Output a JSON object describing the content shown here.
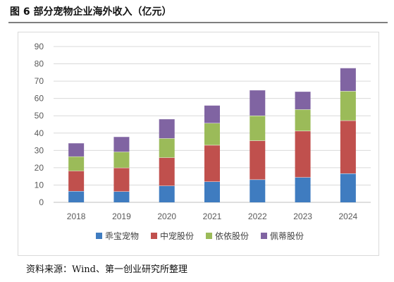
{
  "header": {
    "title": "图 6 部分宠物企业海外收入（亿元）"
  },
  "footer": {
    "source": "资料来源：Wind、第一创业研究所整理"
  },
  "chart_data": {
    "type": "bar",
    "stacked": true,
    "categories": [
      "2018",
      "2019",
      "2020",
      "2021",
      "2022",
      "2023",
      "2024"
    ],
    "ylim": [
      0,
      90
    ],
    "yticks": [
      0,
      10,
      20,
      30,
      40,
      50,
      60,
      70,
      80,
      90
    ],
    "grid": true,
    "legend_position": "bottom",
    "series": [
      {
        "name": "乖宝宠物",
        "color": "#3f7cc0",
        "values": [
          6.5,
          6.3,
          9.6,
          12.0,
          13.2,
          14.5,
          16.7
        ]
      },
      {
        "name": "中宠股份",
        "color": "#c0504d",
        "values": [
          11.7,
          13.7,
          16.3,
          21.1,
          22.5,
          26.8,
          30.6
        ]
      },
      {
        "name": "依依股份",
        "color": "#9bbb59",
        "values": [
          8.3,
          9.2,
          11.1,
          12.7,
          14.4,
          12.4,
          17.0
        ]
      },
      {
        "name": "佩蒂股份",
        "color": "#8064a2",
        "values": [
          7.8,
          8.8,
          11.2,
          10.3,
          14.8,
          10.4,
          13.4
        ]
      }
    ]
  }
}
